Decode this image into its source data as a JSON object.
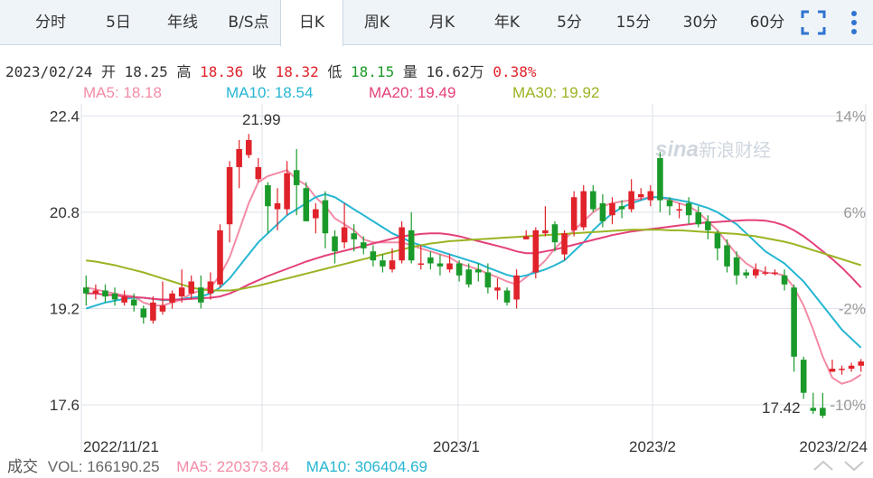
{
  "tabs": [
    {
      "label": "分时",
      "active": false
    },
    {
      "label": "5日",
      "active": false
    },
    {
      "label": "年线",
      "active": false
    },
    {
      "label": "B/S点",
      "active": false
    },
    {
      "label": "日K",
      "active": true
    },
    {
      "label": "周K",
      "active": false
    },
    {
      "label": "月K",
      "active": false
    },
    {
      "label": "年K",
      "active": false
    },
    {
      "label": "5分",
      "active": false
    },
    {
      "label": "15分",
      "active": false
    },
    {
      "label": "30分",
      "active": false
    },
    {
      "label": "60分",
      "active": false
    }
  ],
  "toolbar": {
    "fullscreen_icon": "fullscreen-icon",
    "more_icon": "more-vertical-icon",
    "icon_color": "#2f74d0"
  },
  "quote": {
    "date": "2023/02/24",
    "open_label": "开",
    "open": "18.25",
    "high_label": "高",
    "high": "18.36",
    "close_label": "收",
    "close": "18.32",
    "low_label": "低",
    "low": "18.15",
    "volume_label": "量",
    "volume": "16.62万",
    "change": "0.38%"
  },
  "ma": [
    {
      "text": "MA5: 18.18",
      "color": "#f38ba5"
    },
    {
      "text": "MA10: 18.54",
      "color": "#25b6d2"
    },
    {
      "text": "MA20: 19.49",
      "color": "#e5407a"
    },
    {
      "text": "MA30: 19.92",
      "color": "#9ab422"
    }
  ],
  "volume_bar": {
    "label": "成交",
    "vol": "VOL: 166190.25",
    "ma5": "MA5: 220373.84",
    "ma10": "MA10: 306404.69",
    "vol_color": "#666666",
    "ma5_color": "#f38ba5",
    "ma10_color": "#25b6d2"
  },
  "colors": {
    "up": "#e0222a",
    "down": "#1a9a2a",
    "grid": "#dde2ea",
    "axis_text": "#333333",
    "pct_text": "#999999"
  },
  "watermark": "sina新浪财经",
  "chart_data": {
    "type": "candlestick",
    "ylim": [
      17.0,
      22.6
    ],
    "y_ticks": [
      22.4,
      20.8,
      19.2,
      17.6
    ],
    "y_ticks_right": [
      "14%",
      "6%",
      "-2%",
      "-10%"
    ],
    "x_labels": [
      "2022/11/21",
      "2023/1",
      "2023/2",
      "2023/2/24"
    ],
    "annotations": {
      "max": "21.99",
      "min": "17.42"
    },
    "candles": [
      [
        19.55,
        19.45,
        19.75,
        19.25
      ],
      [
        19.45,
        19.5,
        19.6,
        19.35
      ],
      [
        19.5,
        19.4,
        19.6,
        19.3
      ],
      [
        19.45,
        19.35,
        19.55,
        19.25
      ],
      [
        19.3,
        19.4,
        19.5,
        19.25
      ],
      [
        19.35,
        19.25,
        19.45,
        19.15
      ],
      [
        19.2,
        19.05,
        19.25,
        18.95
      ],
      [
        19.0,
        19.3,
        19.4,
        18.95
      ],
      [
        19.15,
        19.25,
        19.65,
        19.1
      ],
      [
        19.3,
        19.45,
        19.5,
        19.2
      ],
      [
        19.4,
        19.55,
        19.85,
        19.3
      ],
      [
        19.45,
        19.65,
        19.75,
        19.35
      ],
      [
        19.55,
        19.3,
        19.75,
        19.2
      ],
      [
        19.45,
        19.65,
        19.8,
        19.35
      ],
      [
        19.6,
        20.5,
        20.6,
        19.55
      ],
      [
        20.6,
        21.55,
        21.65,
        20.3
      ],
      [
        21.55,
        21.85,
        22.0,
        21.2
      ],
      [
        21.75,
        22.0,
        22.1,
        21.7
      ],
      [
        21.35,
        21.55,
        21.7,
        21.3
      ],
      [
        21.25,
        20.9,
        21.3,
        20.45
      ],
      [
        20.85,
        20.95,
        21.2,
        20.5
      ],
      [
        20.85,
        21.45,
        21.65,
        20.75
      ],
      [
        21.5,
        21.25,
        21.85,
        20.75
      ],
      [
        21.2,
        20.65,
        21.3,
        20.65
      ],
      [
        20.7,
        20.85,
        20.95,
        20.45
      ],
      [
        21.0,
        20.45,
        21.15,
        20.2
      ],
      [
        20.4,
        20.15,
        20.5,
        19.95
      ],
      [
        20.3,
        20.55,
        20.95,
        20.2
      ],
      [
        20.45,
        20.35,
        20.6,
        20.15
      ],
      [
        20.3,
        20.2,
        20.4,
        20.1
      ],
      [
        20.15,
        20.0,
        20.25,
        19.9
      ],
      [
        20.0,
        19.9,
        20.1,
        19.8
      ],
      [
        19.85,
        20.0,
        20.2,
        19.8
      ],
      [
        20.0,
        20.55,
        20.65,
        19.95
      ],
      [
        20.5,
        20.0,
        20.8,
        19.95
      ],
      [
        19.95,
        19.95,
        20.25,
        19.85
      ],
      [
        20.05,
        19.95,
        20.15,
        19.85
      ],
      [
        19.95,
        19.9,
        20.1,
        19.75
      ],
      [
        19.85,
        19.95,
        20.1,
        19.8
      ],
      [
        19.95,
        19.75,
        20.0,
        19.65
      ],
      [
        19.85,
        19.6,
        19.95,
        19.55
      ],
      [
        19.85,
        19.8,
        19.95,
        19.65
      ],
      [
        19.8,
        19.55,
        19.95,
        19.45
      ],
      [
        19.5,
        19.55,
        19.7,
        19.35
      ],
      [
        19.5,
        19.3,
        19.55,
        19.25
      ],
      [
        19.35,
        19.75,
        19.85,
        19.2
      ],
      [
        20.35,
        20.4,
        20.5,
        20.35
      ],
      [
        19.8,
        20.5,
        20.55,
        19.7
      ],
      [
        20.45,
        20.5,
        20.9,
        20.4
      ],
      [
        20.6,
        20.3,
        20.65,
        20.15
      ],
      [
        20.1,
        20.45,
        20.5,
        20.0
      ],
      [
        20.5,
        21.05,
        21.15,
        20.4
      ],
      [
        20.55,
        21.15,
        21.25,
        20.5
      ],
      [
        21.15,
        20.85,
        21.25,
        20.8
      ],
      [
        20.95,
        20.65,
        21.1,
        20.55
      ],
      [
        20.75,
        20.95,
        21.05,
        20.6
      ],
      [
        20.9,
        20.85,
        21.0,
        20.7
      ],
      [
        20.85,
        21.15,
        21.35,
        20.8
      ],
      [
        21.05,
        21.1,
        21.2,
        21.0
      ],
      [
        21.0,
        21.15,
        21.25,
        20.9
      ],
      [
        21.7,
        21.0,
        21.8,
        20.8
      ],
      [
        21.0,
        20.9,
        21.05,
        20.75
      ],
      [
        20.85,
        20.85,
        20.95,
        20.7
      ],
      [
        20.95,
        20.75,
        21.05,
        20.6
      ],
      [
        20.8,
        20.6,
        20.9,
        20.55
      ],
      [
        20.65,
        20.5,
        20.75,
        20.35
      ],
      [
        20.45,
        20.2,
        20.5,
        20.0
      ],
      [
        20.25,
        19.9,
        20.35,
        19.8
      ],
      [
        20.05,
        19.75,
        20.15,
        19.6
      ],
      [
        19.8,
        19.75,
        19.85,
        19.7
      ],
      [
        19.75,
        19.85,
        19.95,
        19.7
      ],
      [
        19.8,
        19.8,
        19.9,
        19.75
      ],
      [
        19.8,
        19.8,
        19.85,
        19.75
      ],
      [
        19.75,
        19.6,
        19.85,
        19.5
      ],
      [
        19.55,
        18.4,
        19.6,
        18.15
      ],
      [
        18.35,
        17.8,
        18.4,
        17.7
      ],
      [
        17.55,
        17.5,
        17.8,
        17.45
      ],
      [
        17.55,
        17.42,
        17.8,
        17.38
      ],
      [
        18.15,
        18.2,
        18.35,
        18.15
      ],
      [
        18.2,
        18.2,
        18.25,
        18.1
      ],
      [
        18.2,
        18.25,
        18.3,
        18.15
      ],
      [
        18.25,
        18.32,
        18.36,
        18.15
      ]
    ],
    "series": [
      {
        "name": "MA5",
        "color": "#f38ba5",
        "values": [
          19.55,
          19.52,
          19.48,
          19.45,
          19.42,
          19.4,
          19.3,
          19.25,
          19.25,
          19.3,
          19.35,
          19.45,
          19.5,
          19.55,
          19.75,
          20.05,
          20.5,
          20.95,
          21.3,
          21.4,
          21.45,
          21.5,
          21.35,
          21.25,
          21.05,
          20.9,
          20.7,
          20.6,
          20.5,
          20.35,
          20.3,
          20.3,
          20.3,
          20.3,
          20.25,
          20.2,
          20.15,
          20.1,
          20.05,
          19.95,
          19.9,
          19.85,
          19.78,
          19.72,
          19.65,
          19.6,
          19.72,
          19.85,
          20.0,
          20.2,
          20.35,
          20.5,
          20.65,
          20.8,
          20.9,
          20.95,
          20.98,
          21.0,
          21.02,
          21.05,
          21.05,
          21.0,
          20.95,
          20.9,
          20.8,
          20.65,
          20.5,
          20.3,
          20.1,
          19.95,
          19.85,
          19.8,
          19.78,
          19.75,
          19.55,
          19.25,
          18.85,
          18.4,
          18.05,
          17.95,
          18.0,
          18.1
        ]
      },
      {
        "name": "MA10",
        "color": "#25b6d2",
        "values": [
          19.2,
          19.25,
          19.3,
          19.33,
          19.36,
          19.38,
          19.38,
          19.36,
          19.34,
          19.34,
          19.36,
          19.38,
          19.4,
          19.45,
          19.55,
          19.7,
          19.9,
          20.1,
          20.3,
          20.45,
          20.6,
          20.75,
          20.85,
          20.95,
          21.05,
          21.1,
          21.05,
          20.95,
          20.85,
          20.75,
          20.65,
          20.55,
          20.45,
          20.38,
          20.3,
          20.25,
          20.2,
          20.15,
          20.1,
          20.05,
          20.0,
          19.95,
          19.88,
          19.82,
          19.76,
          19.72,
          19.75,
          19.8,
          19.85,
          19.92,
          20.0,
          20.15,
          20.3,
          20.5,
          20.65,
          20.78,
          20.88,
          20.95,
          21.0,
          21.05,
          21.05,
          21.03,
          21.0,
          20.97,
          20.92,
          20.87,
          20.8,
          20.7,
          20.6,
          20.45,
          20.3,
          20.15,
          20.05,
          19.95,
          19.8,
          19.65,
          19.45,
          19.25,
          19.05,
          18.85,
          18.7,
          18.55
        ]
      },
      {
        "name": "MA20",
        "color": "#e5407a",
        "values": [
          19.45,
          19.45,
          19.43,
          19.42,
          19.4,
          19.39,
          19.38,
          19.36,
          19.35,
          19.35,
          19.35,
          19.36,
          19.37,
          19.38,
          19.4,
          19.45,
          19.52,
          19.6,
          19.67,
          19.74,
          19.8,
          19.86,
          19.92,
          19.98,
          20.03,
          20.08,
          20.12,
          20.16,
          20.2,
          20.24,
          20.28,
          20.32,
          20.36,
          20.4,
          20.42,
          20.44,
          20.45,
          20.45,
          20.43,
          20.4,
          20.36,
          20.32,
          20.28,
          20.24,
          20.2,
          20.15,
          20.12,
          20.12,
          20.15,
          20.18,
          20.22,
          20.26,
          20.3,
          20.34,
          20.38,
          20.42,
          20.45,
          20.48,
          20.5,
          20.52,
          20.54,
          20.56,
          20.58,
          20.6,
          20.62,
          20.63,
          20.64,
          20.65,
          20.66,
          20.67,
          20.67,
          20.66,
          20.63,
          20.58,
          20.5,
          20.4,
          20.28,
          20.15,
          20.02,
          19.88,
          19.72,
          19.55
        ]
      },
      {
        "name": "MA30",
        "color": "#9ab422",
        "values": [
          20.0,
          19.98,
          19.95,
          19.92,
          19.88,
          19.84,
          19.8,
          19.75,
          19.7,
          19.65,
          19.6,
          19.55,
          19.52,
          19.5,
          19.5,
          19.5,
          19.52,
          19.55,
          19.58,
          19.62,
          19.66,
          19.7,
          19.74,
          19.78,
          19.82,
          19.86,
          19.9,
          19.94,
          19.98,
          20.02,
          20.06,
          20.1,
          20.14,
          20.18,
          20.22,
          20.25,
          20.28,
          20.3,
          20.32,
          20.33,
          20.34,
          20.35,
          20.36,
          20.37,
          20.38,
          20.39,
          20.4,
          20.41,
          20.42,
          20.43,
          20.44,
          20.45,
          20.46,
          20.47,
          20.48,
          20.49,
          20.5,
          20.51,
          20.51,
          20.51,
          20.51,
          20.5,
          20.5,
          20.49,
          20.48,
          20.47,
          20.46,
          20.45,
          20.44,
          20.42,
          20.4,
          20.37,
          20.34,
          20.31,
          20.27,
          20.22,
          20.17,
          20.12,
          20.07,
          20.02,
          19.97,
          19.92
        ]
      }
    ]
  }
}
